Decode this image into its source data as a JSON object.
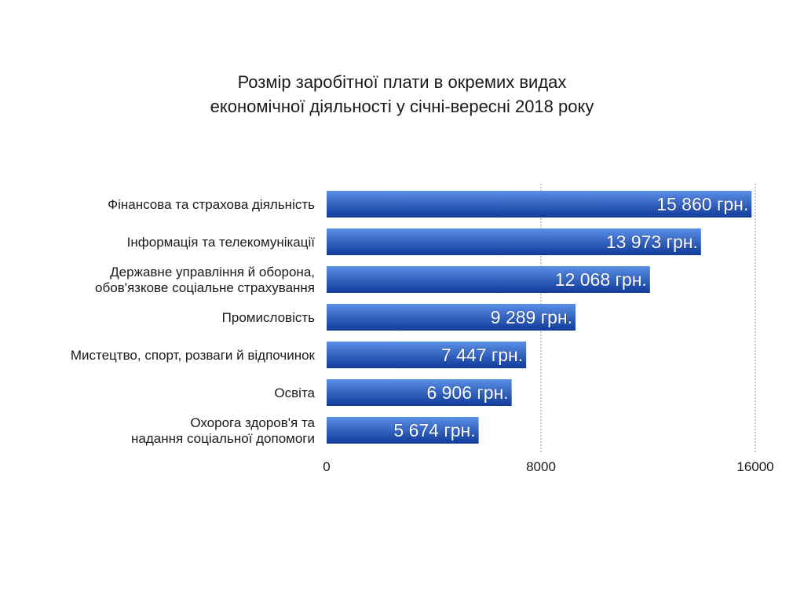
{
  "chart_data": {
    "type": "bar",
    "orientation": "horizontal",
    "title_lines": [
      "Розмір заробітної плати в окремих видах",
      "економічної діяльності у січні-вересні 2018 року"
    ],
    "categories": [
      [
        "Фінансова та страхова діяльність"
      ],
      [
        "Інформація та телекомунікації"
      ],
      [
        "Державне управління й оборона,",
        "обов'язкове соціальне страхування"
      ],
      [
        "Промисловість"
      ],
      [
        "Мистецтво, спорт, розваги й відпочинок"
      ],
      [
        "Освіта"
      ],
      [
        "Охорога здоров'я та",
        "надання соціальної допомоги"
      ]
    ],
    "values": [
      15860,
      13973,
      12068,
      9289,
      7447,
      6906,
      5674
    ],
    "value_labels": [
      "15 860 грн.",
      "13 973 грн.",
      "12 068 грн.",
      "9 289 грн.",
      "7 447 грн.",
      "6 906 грн.",
      "5 674 грн."
    ],
    "xlim": [
      0,
      16000
    ],
    "xticks": [
      0,
      8000,
      16000
    ],
    "xtick_labels": [
      "0",
      "8000",
      "16000"
    ],
    "grid": "vertical-dashed",
    "colors": {
      "bar_top": "#5a8fe6",
      "bar_bottom": "#0f3a99",
      "grid": "#9a9a9a",
      "text": "#1a1a1a"
    }
  }
}
